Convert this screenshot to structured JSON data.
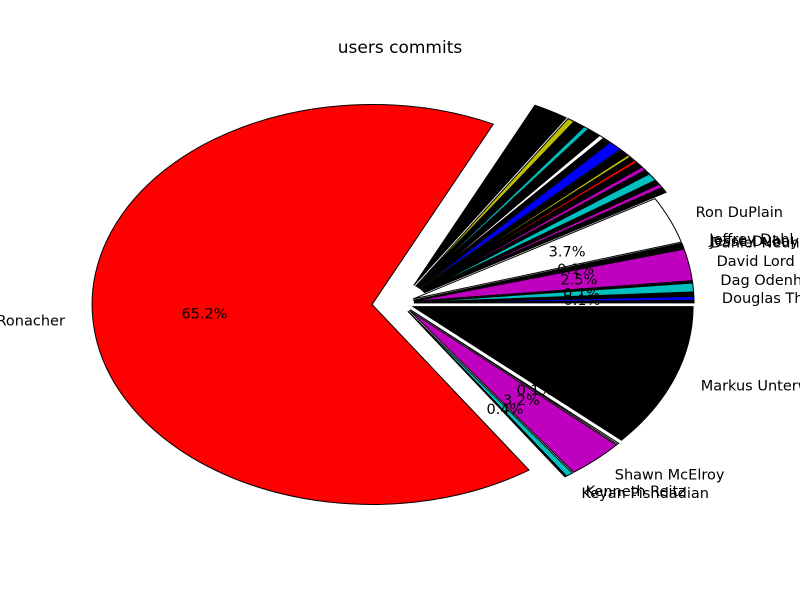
{
  "chart_data": {
    "type": "pie",
    "title": "users commits",
    "start_angle_deg": 0,
    "direction": "clockwise",
    "slices": [
      {
        "label": "Markus Unterwaditzer",
        "value": 11.4,
        "pct_text": "",
        "color": "#000000",
        "explode": 0.05
      },
      {
        "label": "",
        "value": 0.1,
        "pct_text": "0.1%",
        "color": "#ffffff",
        "explode": 0.05
      },
      {
        "label": "Shawn McElroy",
        "value": 3.2,
        "pct_text": "3.2%",
        "color": "#bf00bf",
        "explode": 0.05
      },
      {
        "label": "Kenneth Reitz",
        "value": 0.4,
        "pct_text": "0.4%",
        "color": "#00bfbf",
        "explode": 0.05
      },
      {
        "label": "Keyan Pishdadian",
        "value": 0.1,
        "pct_text": "",
        "color": "#000000",
        "explode": 0.05
      },
      {
        "label": "Armin Ronacher",
        "value": 65.2,
        "pct_text": "65.2%",
        "color": "#ff0000",
        "explode": 0.1
      },
      {
        "label": "",
        "value": 2.0,
        "pct_text": "",
        "color": "#000000",
        "explode": 0.1
      },
      {
        "label": "",
        "value": 0.4,
        "pct_text": "",
        "color": "#bfbf00",
        "explode": 0.1
      },
      {
        "label": "",
        "value": 0.6,
        "pct_text": "",
        "color": "#000000",
        "explode": 0.1
      },
      {
        "label": "",
        "value": 0.3,
        "pct_text": "",
        "color": "#00bfbf",
        "explode": 0.1
      },
      {
        "label": "",
        "value": 0.7,
        "pct_text": "",
        "color": "#000000",
        "explode": 0.1
      },
      {
        "label": "",
        "value": 0.3,
        "pct_text": "",
        "color": "#ffffff",
        "explode": 0.1
      },
      {
        "label": "",
        "value": 0.4,
        "pct_text": "",
        "color": "#000000",
        "explode": 0.1
      },
      {
        "label": "",
        "value": 0.8,
        "pct_text": "",
        "color": "#0000ff",
        "explode": 0.1
      },
      {
        "label": "",
        "value": 0.5,
        "pct_text": "",
        "color": "#000000",
        "explode": 0.1
      },
      {
        "label": "",
        "value": 0.2,
        "pct_text": "",
        "color": "#bfbf00",
        "explode": 0.1
      },
      {
        "label": "",
        "value": 0.3,
        "pct_text": "",
        "color": "#000000",
        "explode": 0.1
      },
      {
        "label": "",
        "value": 0.2,
        "pct_text": "",
        "color": "#ff0000",
        "explode": 0.1
      },
      {
        "label": "",
        "value": 0.4,
        "pct_text": "",
        "color": "#000000",
        "explode": 0.1
      },
      {
        "label": "",
        "value": 0.3,
        "pct_text": "",
        "color": "#bf00bf",
        "explode": 0.1
      },
      {
        "label": "",
        "value": 0.3,
        "pct_text": "",
        "color": "#000000",
        "explode": 0.1
      },
      {
        "label": "",
        "value": 0.6,
        "pct_text": "",
        "color": "#00bfbf",
        "explode": 0.1
      },
      {
        "label": "",
        "value": 0.3,
        "pct_text": "",
        "color": "#000000",
        "explode": 0.1
      },
      {
        "label": "",
        "value": 0.3,
        "pct_text": "",
        "color": "#bf00bf",
        "explode": 0.1
      },
      {
        "label": "",
        "value": 0.4,
        "pct_text": "",
        "color": "#000000",
        "explode": 0.1
      },
      {
        "label": "Ron DuPlain",
        "value": 3.7,
        "pct_text": "3.7%",
        "color": "#ffffff",
        "explode": 0.05
      },
      {
        "label": "Jeffrey Dahl",
        "value": 0.2,
        "pct_text": "",
        "color": "#000000",
        "explode": 0.05
      },
      {
        "label": "Jesse Dubay",
        "value": 0.1,
        "pct_text": "",
        "color": "#000000",
        "explode": 0.05
      },
      {
        "label": "Daniel Neuhäuser",
        "value": 0.1,
        "pct_text": "0.1%",
        "color": "#000000",
        "explode": 0.05
      },
      {
        "label": "David Lord",
        "value": 2.5,
        "pct_text": "2.5%",
        "color": "#bf00bf",
        "explode": 0.05
      },
      {
        "label": "Dag Odenhall",
        "value": 0.1,
        "pct_text": "",
        "color": "#000000",
        "explode": 0.05
      },
      {
        "label": "",
        "value": 0.7,
        "pct_text": "0.1%",
        "color": "#00bfbf",
        "explode": 0.05
      },
      {
        "label": "",
        "value": 0.3,
        "pct_text": "",
        "color": "#000000",
        "explode": 0.05
      },
      {
        "label": "Douglas Thor",
        "value": 0.3,
        "pct_text": "0.1%",
        "color": "#0000ff",
        "explode": 0.05
      },
      {
        "label": "",
        "value": 0.2,
        "pct_text": "",
        "color": "#000000",
        "explode": 0.05
      }
    ]
  }
}
